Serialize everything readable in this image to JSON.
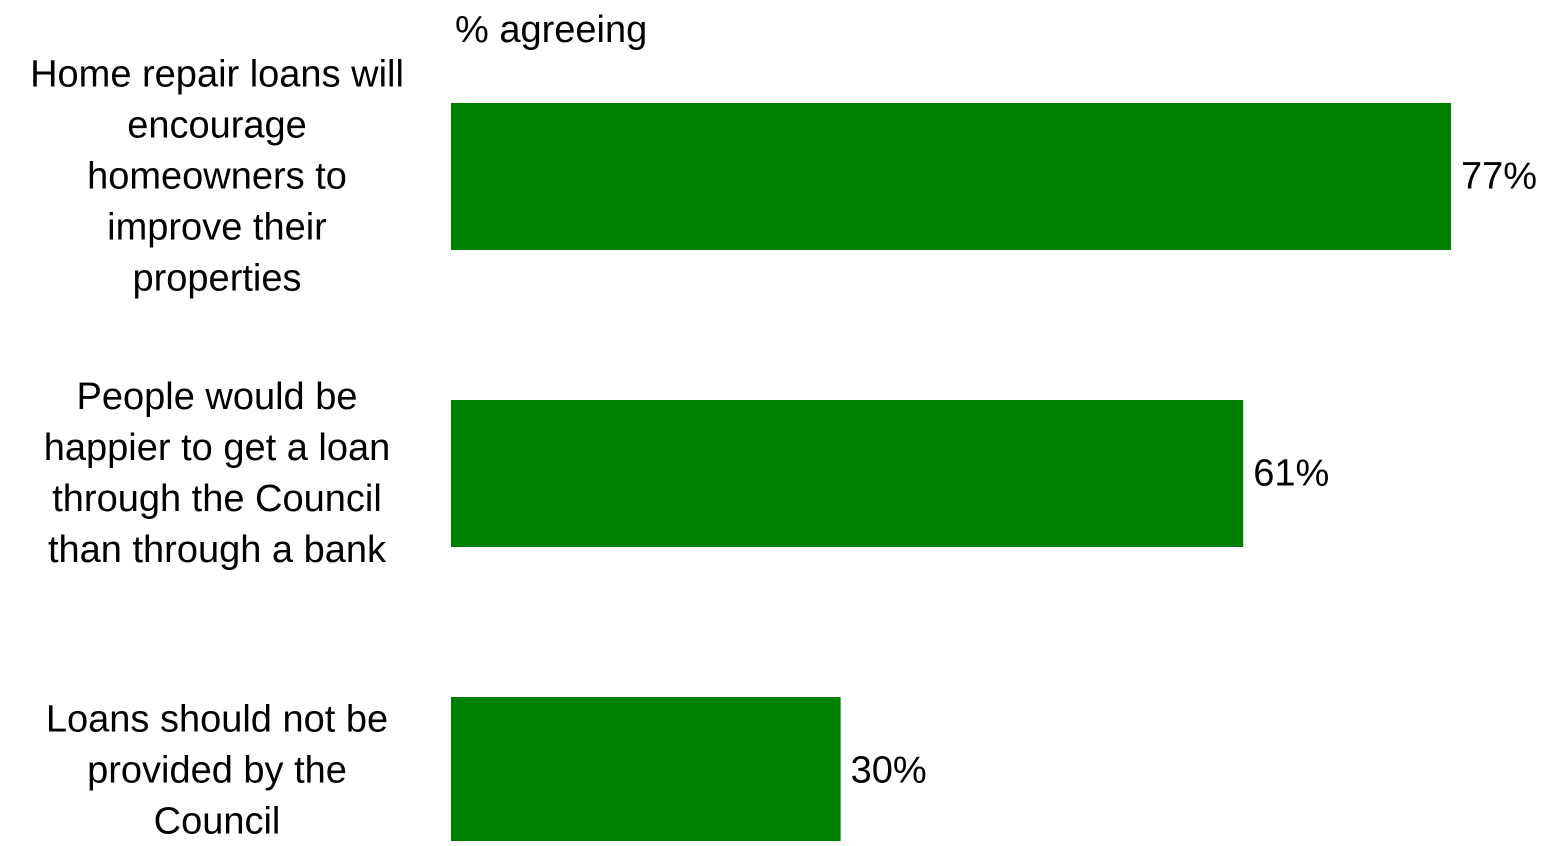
{
  "chart_data": {
    "type": "bar",
    "orientation": "horizontal",
    "title": "% agreeing",
    "categories": [
      "Home repair loans will encourage homeowners to improve their properties",
      "People would be happier to get a loan through the Council than through a bank",
      "Loans should not be provided by the Council"
    ],
    "category_lines": [
      [
        "Home repair loans will",
        "encourage",
        "homeowners to",
        "improve their",
        "properties"
      ],
      [
        "People would be",
        "happier to get a loan",
        "through the Council",
        "than through a bank"
      ],
      [
        "Loans should not be",
        "provided by the",
        "Council"
      ]
    ],
    "values": [
      77,
      61,
      30
    ],
    "value_labels": [
      "77%",
      "61%",
      "30%"
    ],
    "value_unit": "%",
    "xlim": [
      0,
      77
    ],
    "bar_color": "#008000",
    "grid": false,
    "legend": "none",
    "xlabel": "",
    "ylabel": ""
  }
}
